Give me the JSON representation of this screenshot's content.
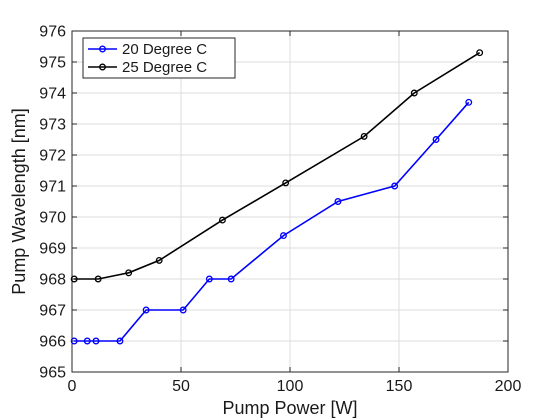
{
  "chart_data": {
    "type": "line",
    "title": "",
    "xlabel": "Pump Power [W]",
    "ylabel": "Pump Wavelength [nm]",
    "xlim": [
      0,
      200
    ],
    "ylim": [
      965,
      976
    ],
    "xticks": [
      0,
      50,
      100,
      150,
      200
    ],
    "yticks": [
      965,
      966,
      967,
      968,
      969,
      970,
      971,
      972,
      973,
      974,
      975,
      976
    ],
    "xtick_labels": [
      "0",
      "50",
      "100",
      "150",
      "200"
    ],
    "ytick_labels": [
      "965",
      "966",
      "967",
      "968",
      "969",
      "970",
      "971",
      "972",
      "973",
      "974",
      "975",
      "976"
    ],
    "grid": true,
    "legend_position": "top-left",
    "series": [
      {
        "name": "20 Degree C",
        "color": "#0000ff",
        "marker": "circle",
        "x": [
          1,
          7,
          11,
          22,
          34,
          51,
          63,
          73,
          97,
          122,
          148,
          167,
          182
        ],
        "y": [
          966.0,
          966.0,
          966.0,
          966.0,
          967.0,
          967.0,
          968.0,
          968.0,
          969.4,
          970.5,
          971.0,
          972.5,
          973.7
        ]
      },
      {
        "name": "25 Degree C",
        "color": "#000000",
        "marker": "circle",
        "x": [
          1,
          12,
          26,
          40,
          69,
          98,
          134,
          157,
          187
        ],
        "y": [
          968.0,
          968.0,
          968.2,
          968.6,
          969.9,
          971.1,
          972.6,
          974.0,
          975.3
        ]
      }
    ]
  }
}
